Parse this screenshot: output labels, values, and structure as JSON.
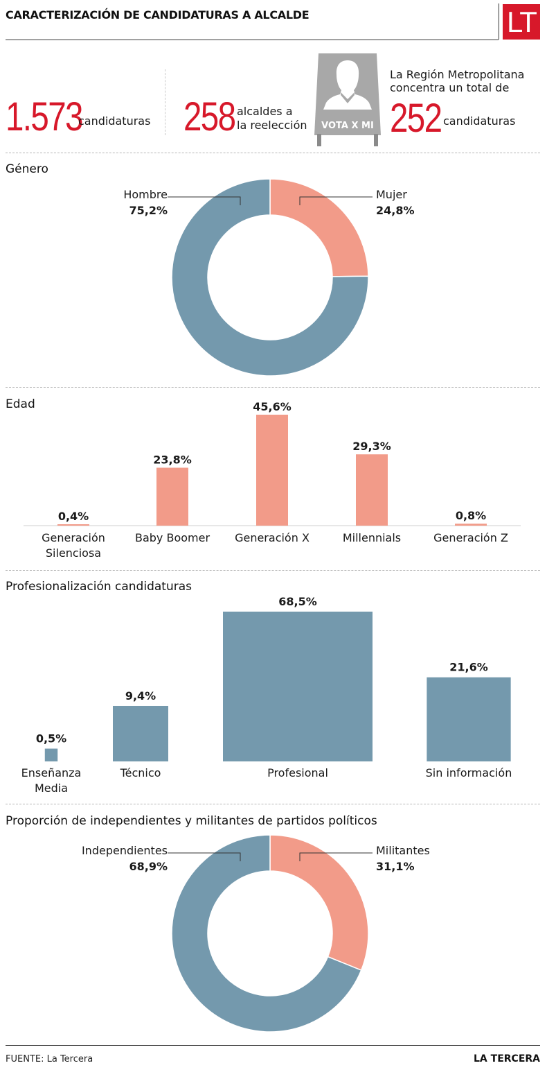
{
  "header": {
    "title": "CARACTERIZACIÓN DE CANDIDATURAS A ALCALDE",
    "logo": "LT"
  },
  "stats": [
    {
      "number": "1.573",
      "text": "candidaturas"
    },
    {
      "number": "258",
      "text_line1": "alcaldes a",
      "text_line2": "la reelección"
    },
    {
      "note_line1": "La Región Metropolitana",
      "note_line2": "concentra un total de",
      "number": "252",
      "text": "candidaturas"
    }
  ],
  "illustration": {
    "icon": "ballot-sign-woman-icon",
    "sign_text": "VOTA X MI"
  },
  "colors": {
    "accent": "#d7182a",
    "blue": "#7499ad",
    "salmon": "#f29b89"
  },
  "chart_data": [
    {
      "type": "pie",
      "style": "donut",
      "title": "Género",
      "slices": [
        {
          "label": "Hombre",
          "value": 75.2,
          "value_label": "75,2%",
          "color": "#7499ad"
        },
        {
          "label": "Mujer",
          "value": 24.8,
          "value_label": "24,8%",
          "color": "#f29b89"
        }
      ]
    },
    {
      "type": "bar",
      "title": "Edad",
      "categories": [
        "Generación Silenciosa",
        "Baby Boomer",
        "Generación X",
        "Millennials",
        "Generación Z"
      ],
      "category_lines": [
        [
          "Generación",
          "Silenciosa"
        ],
        [
          "Baby Boomer"
        ],
        [
          "Generación X"
        ],
        [
          "Millennials"
        ],
        [
          "Generación Z"
        ]
      ],
      "values": [
        0.4,
        23.8,
        45.6,
        29.3,
        0.8
      ],
      "value_labels": [
        "0,4%",
        "23,8%",
        "45,6%",
        "29,3%",
        "0,8%"
      ],
      "color": "#f29b89",
      "ylim": [
        0,
        45.6
      ]
    },
    {
      "type": "bar",
      "title": "Profesionalización candidaturas",
      "categories": [
        "Enseñanza Media",
        "Técnico",
        "Profesional",
        "Sin información"
      ],
      "category_lines": [
        [
          "Enseñanza",
          "Media"
        ],
        [
          "Técnico"
        ],
        [
          "Profesional"
        ],
        [
          "Sin información"
        ]
      ],
      "values": [
        0.5,
        9.4,
        68.5,
        21.6
      ],
      "value_labels": [
        "0,5%",
        "9,4%",
        "68,5%",
        "21,6%"
      ],
      "color": "#7499ad",
      "encoding": "area-proportional squares"
    },
    {
      "type": "pie",
      "style": "donut",
      "title": "Proporción de independientes y militantes de partidos políticos",
      "slices": [
        {
          "label": "Independientes",
          "value": 68.9,
          "value_label": "68,9%",
          "color": "#7499ad"
        },
        {
          "label": "Militantes",
          "value": 31.1,
          "value_label": "31,1%",
          "color": "#f29b89"
        }
      ]
    }
  ],
  "footer": {
    "source": "FUENTE: La Tercera",
    "brand": "LA TERCERA"
  }
}
